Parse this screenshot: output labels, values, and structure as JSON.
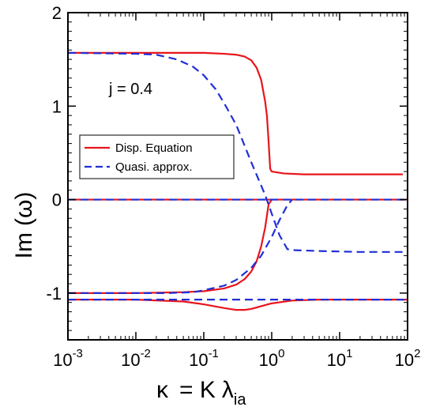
{
  "chart_data": {
    "type": "line",
    "xscale": "log",
    "xlim": [
      0.001,
      100
    ],
    "ylim": [
      -1.5,
      2
    ],
    "x_ticks": [
      0.001,
      0.01,
      0.1,
      1,
      10,
      100
    ],
    "x_tick_labels": [
      {
        "base": "10",
        "exp": "-3"
      },
      {
        "base": "10",
        "exp": "-2"
      },
      {
        "base": "10",
        "exp": "-1"
      },
      {
        "base": "10",
        "exp": "0"
      },
      {
        "base": "10",
        "exp": "1"
      },
      {
        "base": "10",
        "exp": "2"
      }
    ],
    "y_ticks": [
      -1,
      0,
      1,
      2
    ],
    "y_tick_labels": [
      "-1",
      "0",
      "1",
      "2"
    ],
    "xlabel": {
      "kappa": "κ",
      "eq": "= K",
      "lambda": "λ",
      "sub": "ia"
    },
    "ylabel": {
      "im": "Im",
      "omega": "(ω)"
    },
    "annotation": "j = 0.4",
    "grid": false,
    "legend_position": "center-left",
    "legend": [
      {
        "label": "Disp. Equation",
        "color": "#e8141b",
        "dash": "solid"
      },
      {
        "label": "Quasi. approx.",
        "color": "#1f2fd6",
        "dash": "dashed"
      }
    ],
    "series": [
      {
        "name": "Disp. Equation",
        "color": "#e8141b",
        "dash": "solid",
        "x": [
          0.001,
          0.01,
          0.05,
          0.1,
          0.2,
          0.3,
          0.4,
          0.5,
          0.6,
          0.7,
          0.8,
          0.85,
          0.9,
          0.95,
          1.0,
          1.5,
          3,
          10,
          30,
          85
        ],
        "y": [
          1.57,
          1.57,
          1.57,
          1.57,
          1.56,
          1.55,
          1.53,
          1.49,
          1.41,
          1.28,
          1.05,
          0.9,
          0.62,
          0.33,
          0.3,
          0.28,
          0.27,
          0.27,
          0.27,
          0.27
        ]
      },
      {
        "name": "Disp. Equation",
        "color": "#e8141b",
        "dash": "solid",
        "x": [
          0.001,
          0.01,
          0.05,
          0.1,
          0.2,
          0.3,
          0.4,
          0.5,
          0.6,
          0.7,
          0.8,
          0.9,
          1.0
        ],
        "y": [
          -1.0,
          -1.0,
          -0.99,
          -0.98,
          -0.95,
          -0.91,
          -0.85,
          -0.77,
          -0.66,
          -0.5,
          -0.3,
          -0.05,
          0.0
        ]
      },
      {
        "name": "Disp. Equation",
        "color": "#e8141b",
        "dash": "solid",
        "x": [
          0.001,
          0.01,
          0.05,
          0.1,
          0.2,
          0.3,
          0.4,
          0.5,
          0.7,
          1.0,
          2,
          5,
          10,
          100
        ],
        "y": [
          -1.07,
          -1.07,
          -1.09,
          -1.12,
          -1.16,
          -1.18,
          -1.18,
          -1.17,
          -1.14,
          -1.11,
          -1.08,
          -1.07,
          -1.07,
          -1.07
        ]
      },
      {
        "name": "Disp. Equation",
        "color": "#e8141b",
        "dash": "solid",
        "x": [
          0.001,
          100
        ],
        "y": [
          0.0,
          0.0
        ]
      },
      {
        "name": "Quasi. approx.",
        "color": "#1f2fd6",
        "dash": "dashed",
        "x": [
          0.001,
          0.01,
          0.02,
          0.04,
          0.07,
          0.1,
          0.15,
          0.2,
          0.3,
          0.5,
          0.8,
          1.0,
          1.3,
          1.7,
          2,
          5,
          20,
          85
        ],
        "y": [
          1.57,
          1.56,
          1.55,
          1.5,
          1.42,
          1.33,
          1.18,
          1.03,
          0.8,
          0.4,
          0.05,
          -0.15,
          -0.38,
          -0.53,
          -0.54,
          -0.55,
          -0.56,
          -0.56
        ]
      },
      {
        "name": "Quasi. approx.",
        "color": "#1f2fd6",
        "dash": "dashed",
        "x": [
          0.001,
          0.03,
          0.07,
          0.1,
          0.2,
          0.3,
          0.5,
          0.7,
          1.0,
          1.3,
          1.7,
          2.0
        ],
        "y": [
          -1.0,
          -1.0,
          -0.99,
          -0.97,
          -0.92,
          -0.86,
          -0.73,
          -0.6,
          -0.4,
          -0.22,
          -0.06,
          0.0
        ]
      },
      {
        "name": "Quasi. approx.",
        "color": "#1f2fd6",
        "dash": "dashed",
        "x": [
          0.001,
          100
        ],
        "y": [
          -1.07,
          -1.07
        ]
      },
      {
        "name": "Quasi. approx.",
        "color": "#1f2fd6",
        "dash": "dashed",
        "x": [
          0.001,
          100
        ],
        "y": [
          0.0,
          0.0
        ]
      }
    ]
  }
}
